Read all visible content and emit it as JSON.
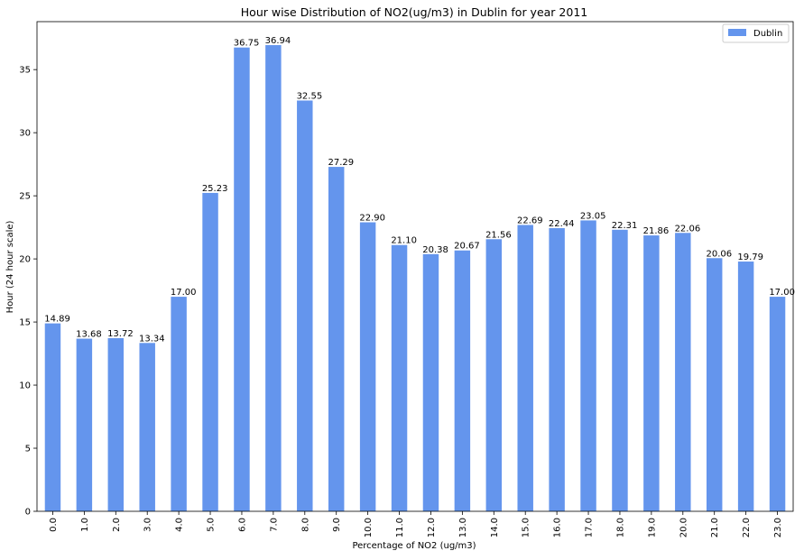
{
  "chart_data": {
    "type": "bar",
    "title": "Hour wise Distribution of NO2(ug/m3) in Dublin for year 2011",
    "xlabel": "Percentage of NO2 (ug/m3)",
    "ylabel": "Hour (24 hour scale)",
    "categories": [
      "0.0",
      "1.0",
      "2.0",
      "3.0",
      "4.0",
      "5.0",
      "6.0",
      "7.0",
      "8.0",
      "9.0",
      "10.0",
      "11.0",
      "12.0",
      "13.0",
      "14.0",
      "15.0",
      "16.0",
      "17.0",
      "18.0",
      "19.0",
      "20.0",
      "21.0",
      "22.0",
      "23.0"
    ],
    "series": [
      {
        "name": "Dublin",
        "color": "#6495ED",
        "values": [
          14.89,
          13.68,
          13.72,
          13.34,
          17.0,
          25.23,
          36.75,
          36.94,
          32.55,
          27.29,
          22.9,
          21.1,
          20.38,
          20.67,
          21.56,
          22.69,
          22.44,
          23.05,
          22.31,
          21.86,
          22.06,
          20.06,
          19.79,
          17.0
        ],
        "labels": [
          "14.89",
          "13.68",
          "13.72",
          "13.34",
          "17.00",
          "25.23",
          "36.75",
          "36.94",
          "32.55",
          "27.29",
          "22.90",
          "21.10",
          "20.38",
          "20.67",
          "21.56",
          "22.69",
          "22.44",
          "23.05",
          "22.31",
          "21.86",
          "22.06",
          "20.06",
          "19.79",
          "17.00"
        ]
      }
    ],
    "yticks": [
      "0",
      "5",
      "10",
      "15",
      "20",
      "25",
      "30",
      "35"
    ],
    "ylim": [
      0,
      38.8
    ],
    "grid": false,
    "legend": "top-right"
  }
}
